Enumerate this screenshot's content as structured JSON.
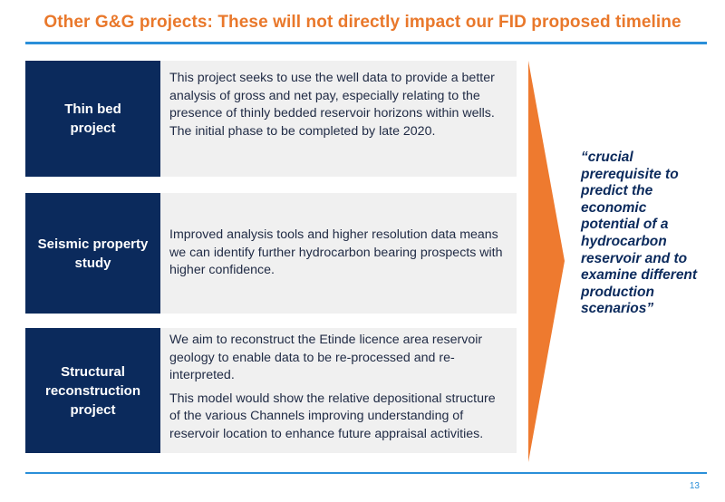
{
  "slide": {
    "title": "Other G&G projects: These will not directly impact our FID proposed timeline",
    "page_number": "13"
  },
  "projects": [
    {
      "label": "Thin bed project",
      "paragraphs": [
        "This project seeks to use the well data to provide a better analysis of gross and net pay, especially relating to the presence of thinly bedded reservoir horizons within wells. The initial phase to be completed by late 2020."
      ]
    },
    {
      "label": "Seismic property study",
      "paragraphs": [
        "Improved analysis tools and higher resolution data means we can identify further hydrocarbon bearing prospects with higher confidence."
      ]
    },
    {
      "label": "Structural reconstruction project",
      "paragraphs": [
        "We aim to reconstruct the Etinde licence area reservoir geology to enable data to be re-processed and re-interpreted.",
        "This model would show the relative depositional structure of the various Channels improving understanding of reservoir location to enhance future appraisal activities."
      ]
    }
  ],
  "quote": "“crucial prerequisite to predict the economic potential of a hydrocarbon reservoir and to examine different production scenarios”",
  "colors": {
    "title": "#E9782B",
    "rule": "#2A8FD9",
    "label_bg": "#0B2A5C",
    "desc_bg": "#F0F0F0",
    "arrow": "#EE7A2F"
  }
}
